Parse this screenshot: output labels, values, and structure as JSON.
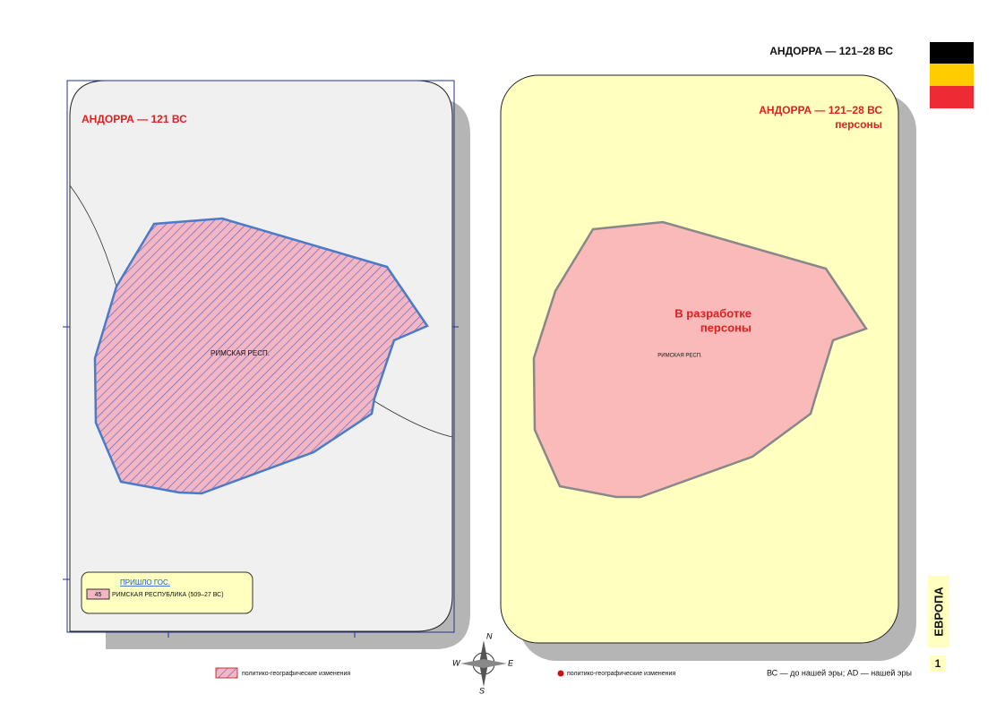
{
  "header": {
    "title": "АНДОРРА — 121–28 ВС"
  },
  "left_map": {
    "title": "АНДОРРА — 121 ВС",
    "region_label": "РИМСКАЯ РЕСП.",
    "legend": {
      "heading": "ПРИШЛО ГОС.",
      "badge": "45",
      "entry": "РИМСКАЯ РЕСПУБЛИКА (509–27 ВС)"
    }
  },
  "right_map": {
    "title": "АНДОРРА — 121–28 ВС",
    "subtitle": "персоны",
    "notice": [
      "В разработке",
      "персоны"
    ],
    "region_label": "РИМСКАЯ РЕСП."
  },
  "compass": [
    "N",
    "W",
    "E",
    "S"
  ],
  "footer": {
    "hatch_legend": "политико-географические изменения",
    "dot_legend": "политико-географические изменения",
    "note": "ВС — до нашей эры; AD — нашей эры"
  },
  "side": {
    "region": "ЕВРОПА",
    "page": "1"
  }
}
